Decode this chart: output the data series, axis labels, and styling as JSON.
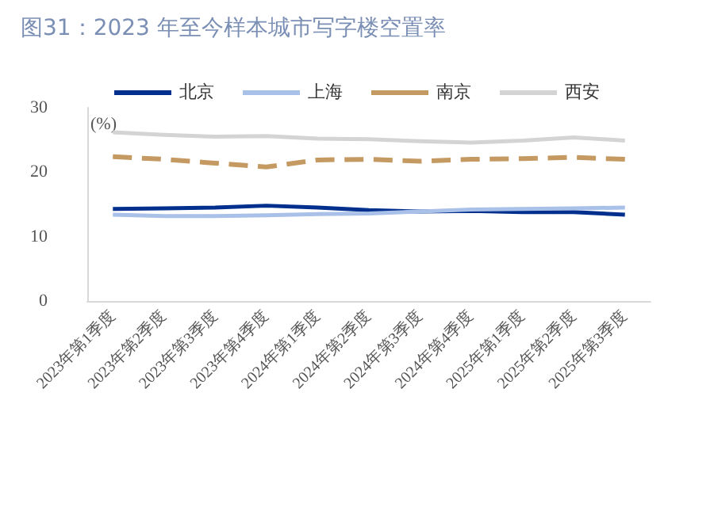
{
  "chart_data": {
    "type": "line",
    "title": "图31：2023 年至今样本城市写字楼空置率",
    "ylabel": "(%)",
    "categories": [
      "2023年第1季度",
      "2023年第2季度",
      "2023年第3季度",
      "2023年第4季度",
      "2024年第1季度",
      "2024年第2季度",
      "2024年第3季度",
      "2024年第4季度",
      "2025年第1季度",
      "2025年第2季度",
      "2025年第3季度"
    ],
    "series": [
      {
        "name": "北京",
        "color": "#002f8e",
        "values": [
          14.3,
          14.4,
          14.5,
          14.8,
          14.5,
          14.1,
          13.9,
          14.0,
          13.8,
          13.8,
          13.4
        ]
      },
      {
        "name": "上海",
        "color": "#a9c0e8",
        "values": [
          13.4,
          13.2,
          13.2,
          13.3,
          13.5,
          13.6,
          13.9,
          14.2,
          14.3,
          14.4,
          14.5
        ]
      },
      {
        "name": "南京",
        "color": "#c49a62",
        "line_style": "dashed",
        "values": [
          22.4,
          22.0,
          21.4,
          20.8,
          21.9,
          22.0,
          21.7,
          22.0,
          22.1,
          22.3,
          22.0
        ]
      },
      {
        "name": "西安",
        "color": "#d4d4d4",
        "values": [
          26.2,
          25.8,
          25.5,
          25.6,
          25.2,
          25.1,
          24.8,
          24.6,
          24.9,
          25.4,
          24.9
        ]
      }
    ],
    "ylim": [
      0,
      30
    ],
    "yticks": [
      0,
      10,
      20,
      30
    ],
    "grid": false,
    "legend": "top",
    "marker": "none"
  }
}
